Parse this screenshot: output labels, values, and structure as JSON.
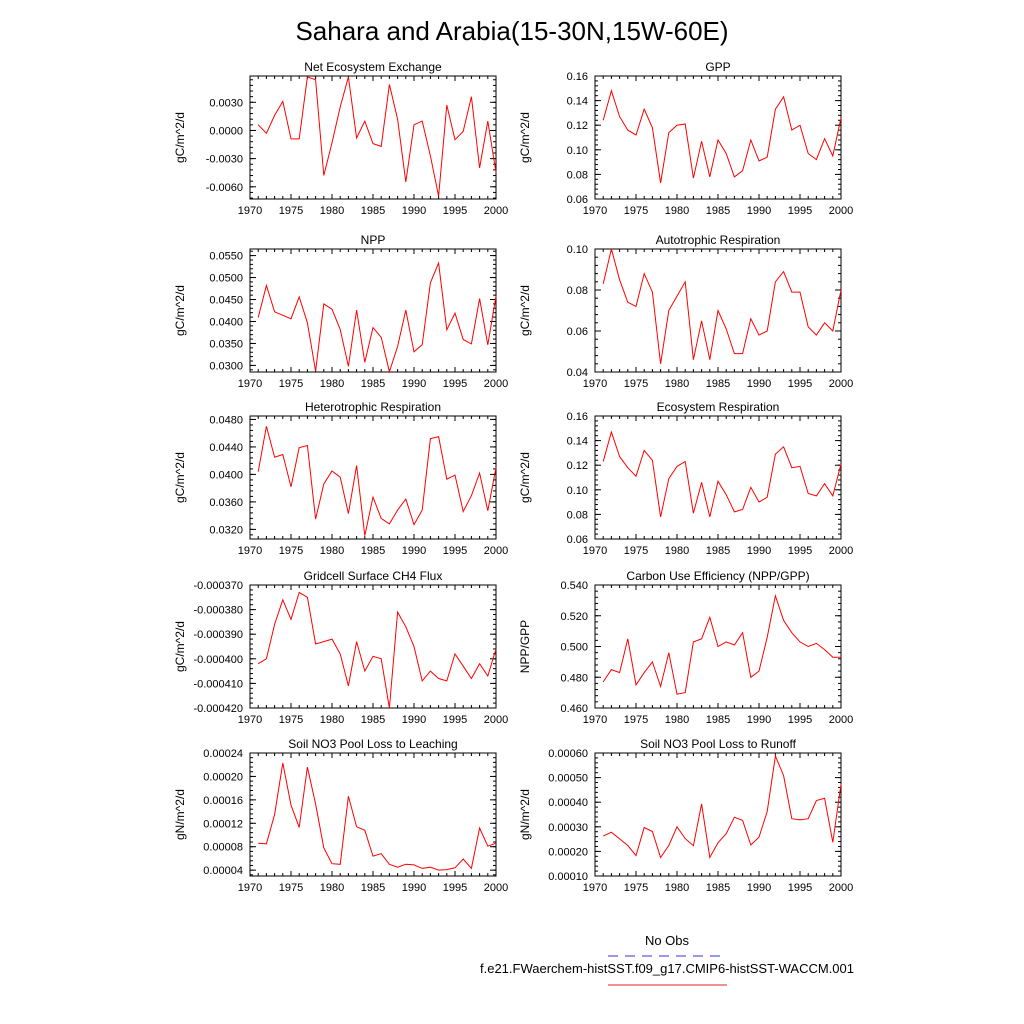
{
  "title": "Sahara and Arabia(15-30N,15W-60E)",
  "legend": {
    "entries": [
      {
        "label": "No Obs",
        "color": "#3333cc",
        "style": "dashed"
      },
      {
        "label": "f.e21.FWaerchem-histSST.f09_g17.CMIP6-histSST-WACCM.001",
        "color": "#e02020",
        "style": "solid"
      }
    ]
  },
  "colors": {
    "series": "#ff0000"
  },
  "chart_data": [
    {
      "type": "line",
      "title": "Net Ecosystem Exchange",
      "ylabel": "gC/m^2/d",
      "xlim": [
        1970,
        2000
      ],
      "ylim": [
        -0.0073,
        0.0058
      ],
      "xticks": [
        1970,
        1975,
        1980,
        1985,
        1990,
        1995,
        2000
      ],
      "xtick_labels": [
        "1970",
        "1975",
        "1980",
        "1985",
        "1990",
        "1995",
        "2000"
      ],
      "yticks": [
        -0.006,
        -0.003,
        0.0,
        0.003
      ],
      "ytick_labels": [
        "-0.0060",
        "-0.0030",
        "0.0000",
        "0.0030"
      ],
      "x": [
        1971,
        1972,
        1973,
        1974,
        1975,
        1976,
        1977,
        1978,
        1979,
        1980,
        1981,
        1982,
        1983,
        1984,
        1985,
        1986,
        1987,
        1988,
        1989,
        1990,
        1991,
        1992,
        1993,
        1994,
        1995,
        1996,
        1997,
        1998,
        1999,
        2000
      ],
      "values": [
        0.0006,
        -0.0003,
        0.0016,
        0.0031,
        -0.0009,
        -0.0009,
        0.0057,
        0.0054,
        -0.0048,
        -0.0013,
        0.0025,
        0.0057,
        -0.0008,
        0.001,
        -0.0014,
        -0.0017,
        0.0049,
        0.0012,
        -0.0055,
        0.0006,
        0.001,
        -0.0027,
        -0.007,
        0.0027,
        -0.001,
        -0.0001,
        0.0036,
        -0.004,
        0.001,
        -0.0045
      ]
    },
    {
      "type": "line",
      "title": "GPP",
      "ylabel": "gC/m^2/d",
      "xlim": [
        1970,
        2000
      ],
      "ylim": [
        0.06,
        0.16
      ],
      "xticks": [
        1970,
        1975,
        1980,
        1985,
        1990,
        1995,
        2000
      ],
      "xtick_labels": [
        "1970",
        "1975",
        "1980",
        "1985",
        "1990",
        "1995",
        "2000"
      ],
      "yticks": [
        0.06,
        0.08,
        0.1,
        0.12,
        0.14,
        0.16
      ],
      "ytick_labels": [
        "0.06",
        "0.08",
        "0.10",
        "0.12",
        "0.14",
        "0.16"
      ],
      "x": [
        1971,
        1972,
        1973,
        1974,
        1975,
        1976,
        1977,
        1978,
        1979,
        1980,
        1981,
        1982,
        1983,
        1984,
        1985,
        1986,
        1987,
        1988,
        1989,
        1990,
        1991,
        1992,
        1993,
        1994,
        1995,
        1996,
        1997,
        1998,
        1999,
        2000
      ],
      "values": [
        0.124,
        0.148,
        0.127,
        0.116,
        0.112,
        0.133,
        0.118,
        0.073,
        0.114,
        0.12,
        0.121,
        0.077,
        0.107,
        0.078,
        0.108,
        0.097,
        0.078,
        0.083,
        0.108,
        0.091,
        0.094,
        0.133,
        0.143,
        0.116,
        0.12,
        0.097,
        0.092,
        0.109,
        0.095,
        0.126
      ]
    },
    {
      "type": "line",
      "title": "NPP",
      "ylabel": "gC/m^2/d",
      "xlim": [
        1970,
        2000
      ],
      "ylim": [
        0.0285,
        0.0565
      ],
      "xticks": [
        1970,
        1975,
        1980,
        1985,
        1990,
        1995,
        2000
      ],
      "xtick_labels": [
        "1970",
        "1975",
        "1980",
        "1985",
        "1990",
        "1995",
        "2000"
      ],
      "yticks": [
        0.03,
        0.035,
        0.04,
        0.045,
        0.05,
        0.055
      ],
      "ytick_labels": [
        "0.0300",
        "0.0350",
        "0.0400",
        "0.0450",
        "0.0500",
        "0.0550"
      ],
      "x": [
        1971,
        1972,
        1973,
        1974,
        1975,
        1976,
        1977,
        1978,
        1979,
        1980,
        1981,
        1982,
        1983,
        1984,
        1985,
        1986,
        1987,
        1988,
        1989,
        1990,
        1991,
        1992,
        1993,
        1994,
        1995,
        1996,
        1997,
        1998,
        1999,
        2000
      ],
      "values": [
        0.0409,
        0.0482,
        0.0422,
        0.0414,
        0.0406,
        0.0456,
        0.0397,
        0.0287,
        0.044,
        0.0428,
        0.0382,
        0.0298,
        0.0426,
        0.0307,
        0.0386,
        0.0364,
        0.0286,
        0.0343,
        0.0426,
        0.0331,
        0.0347,
        0.0488,
        0.0533,
        0.0381,
        0.0419,
        0.0359,
        0.0349,
        0.0452,
        0.0347,
        0.0458
      ]
    },
    {
      "type": "line",
      "title": "Autotrophic Respiration",
      "ylabel": "gC/m^2/d",
      "xlim": [
        1970,
        2000
      ],
      "ylim": [
        0.04,
        0.1
      ],
      "xticks": [
        1970,
        1975,
        1980,
        1985,
        1990,
        1995,
        2000
      ],
      "xtick_labels": [
        "1970",
        "1975",
        "1980",
        "1985",
        "1990",
        "1995",
        "2000"
      ],
      "yticks": [
        0.04,
        0.06,
        0.08,
        0.1
      ],
      "ytick_labels": [
        "0.04",
        "0.06",
        "0.08",
        "0.10"
      ],
      "x": [
        1971,
        1972,
        1973,
        1974,
        1975,
        1976,
        1977,
        1978,
        1979,
        1980,
        1981,
        1982,
        1983,
        1984,
        1985,
        1986,
        1987,
        1988,
        1989,
        1990,
        1991,
        1992,
        1993,
        1994,
        1995,
        1996,
        1997,
        1998,
        1999,
        2000
      ],
      "values": [
        0.083,
        0.1,
        0.085,
        0.074,
        0.072,
        0.088,
        0.079,
        0.044,
        0.07,
        0.077,
        0.084,
        0.046,
        0.065,
        0.046,
        0.07,
        0.061,
        0.049,
        0.049,
        0.066,
        0.058,
        0.06,
        0.084,
        0.089,
        0.079,
        0.079,
        0.062,
        0.058,
        0.064,
        0.06,
        0.08
      ]
    },
    {
      "type": "line",
      "title": "Heterotrophic Respiration",
      "ylabel": "gC/m^2/d",
      "xlim": [
        1970,
        2000
      ],
      "ylim": [
        0.0306,
        0.0485
      ],
      "xticks": [
        1970,
        1975,
        1980,
        1985,
        1990,
        1995,
        2000
      ],
      "xtick_labels": [
        "1970",
        "1975",
        "1980",
        "1985",
        "1990",
        "1995",
        "2000"
      ],
      "yticks": [
        0.032,
        0.036,
        0.04,
        0.044,
        0.048
      ],
      "ytick_labels": [
        "0.0320",
        "0.0360",
        "0.0400",
        "0.0440",
        "0.0480"
      ],
      "x": [
        1971,
        1972,
        1973,
        1974,
        1975,
        1976,
        1977,
        1978,
        1979,
        1980,
        1981,
        1982,
        1983,
        1984,
        1985,
        1986,
        1987,
        1988,
        1989,
        1990,
        1991,
        1992,
        1993,
        1994,
        1995,
        1996,
        1997,
        1998,
        1999,
        2000
      ],
      "values": [
        0.0404,
        0.047,
        0.0425,
        0.0429,
        0.0382,
        0.0439,
        0.0442,
        0.0335,
        0.0386,
        0.0405,
        0.0396,
        0.0343,
        0.0413,
        0.0311,
        0.0367,
        0.0336,
        0.0328,
        0.0348,
        0.0364,
        0.0327,
        0.0348,
        0.0452,
        0.0455,
        0.0393,
        0.0399,
        0.0346,
        0.0369,
        0.0402,
        0.0347,
        0.041
      ]
    },
    {
      "type": "line",
      "title": "Ecosystem Respiration",
      "ylabel": "gC/m^2/d",
      "xlim": [
        1970,
        2000
      ],
      "ylim": [
        0.06,
        0.16
      ],
      "xticks": [
        1970,
        1975,
        1980,
        1985,
        1990,
        1995,
        2000
      ],
      "xtick_labels": [
        "1970",
        "1975",
        "1980",
        "1985",
        "1990",
        "1995",
        "2000"
      ],
      "yticks": [
        0.06,
        0.08,
        0.1,
        0.12,
        0.14,
        0.16
      ],
      "ytick_labels": [
        "0.06",
        "0.08",
        "0.10",
        "0.12",
        "0.14",
        "0.16"
      ],
      "x": [
        1971,
        1972,
        1973,
        1974,
        1975,
        1976,
        1977,
        1978,
        1979,
        1980,
        1981,
        1982,
        1983,
        1984,
        1985,
        1986,
        1987,
        1988,
        1989,
        1990,
        1991,
        1992,
        1993,
        1994,
        1995,
        1996,
        1997,
        1998,
        1999,
        2000
      ],
      "values": [
        0.123,
        0.147,
        0.127,
        0.118,
        0.111,
        0.132,
        0.124,
        0.078,
        0.109,
        0.119,
        0.123,
        0.081,
        0.106,
        0.078,
        0.107,
        0.096,
        0.082,
        0.084,
        0.102,
        0.09,
        0.094,
        0.129,
        0.135,
        0.118,
        0.119,
        0.097,
        0.095,
        0.105,
        0.095,
        0.121
      ]
    },
    {
      "type": "line",
      "title": "Gridcell Surface CH4 Flux",
      "ylabel": "gC/m^2/d",
      "xlim": [
        1970,
        2000
      ],
      "ylim": [
        -0.00042,
        -0.00037
      ],
      "xticks": [
        1970,
        1975,
        1980,
        1985,
        1990,
        1995,
        2000
      ],
      "xtick_labels": [
        "1970",
        "1975",
        "1980",
        "1985",
        "1990",
        "1995",
        "2000"
      ],
      "yticks": [
        -0.00042,
        -0.00041,
        -0.0004,
        -0.00039,
        -0.00038,
        -0.00037
      ],
      "ytick_labels": [
        "-0.000420",
        "-0.000410",
        "-0.000400",
        "-0.000390",
        "-0.000380",
        "-0.000370"
      ],
      "x": [
        1971,
        1972,
        1973,
        1974,
        1975,
        1976,
        1977,
        1978,
        1979,
        1980,
        1981,
        1982,
        1983,
        1984,
        1985,
        1986,
        1987,
        1988,
        1989,
        1990,
        1991,
        1992,
        1993,
        1994,
        1995,
        1996,
        1997,
        1998,
        1999,
        2000
      ],
      "values": [
        -0.000402,
        -0.0004,
        -0.000386,
        -0.000376,
        -0.000384,
        -0.000373,
        -0.000375,
        -0.000394,
        -0.000393,
        -0.000392,
        -0.000398,
        -0.000411,
        -0.000393,
        -0.000405,
        -0.000399,
        -0.0004,
        -0.00042,
        -0.000381,
        -0.000387,
        -0.000395,
        -0.000409,
        -0.000405,
        -0.000408,
        -0.000409,
        -0.000398,
        -0.000403,
        -0.000408,
        -0.000402,
        -0.000407,
        -0.000396
      ]
    },
    {
      "type": "line",
      "title": "Carbon Use Efficiency (NPP/GPP)",
      "ylabel": "NPP/GPP",
      "xlim": [
        1970,
        2000
      ],
      "ylim": [
        0.46,
        0.54
      ],
      "xticks": [
        1970,
        1975,
        1980,
        1985,
        1990,
        1995,
        2000
      ],
      "xtick_labels": [
        "1970",
        "1975",
        "1980",
        "1985",
        "1990",
        "1995",
        "2000"
      ],
      "yticks": [
        0.46,
        0.48,
        0.5,
        0.52,
        0.54
      ],
      "ytick_labels": [
        "0.460",
        "0.480",
        "0.500",
        "0.520",
        "0.540"
      ],
      "x": [
        1971,
        1972,
        1973,
        1974,
        1975,
        1976,
        1977,
        1978,
        1979,
        1980,
        1981,
        1982,
        1983,
        1984,
        1985,
        1986,
        1987,
        1988,
        1989,
        1990,
        1991,
        1992,
        1993,
        1994,
        1995,
        1996,
        1997,
        1998,
        1999,
        2000
      ],
      "values": [
        0.477,
        0.485,
        0.483,
        0.505,
        0.475,
        0.483,
        0.49,
        0.474,
        0.496,
        0.469,
        0.47,
        0.503,
        0.505,
        0.519,
        0.5,
        0.503,
        0.501,
        0.509,
        0.48,
        0.484,
        0.506,
        0.533,
        0.517,
        0.509,
        0.503,
        0.5,
        0.502,
        0.498,
        0.493,
        0.493
      ]
    },
    {
      "type": "line",
      "title": "Soil NO3 Pool Loss to Leaching",
      "ylabel": "gN/m^2/d",
      "xlim": [
        1970,
        2000
      ],
      "ylim": [
        3e-05,
        0.00024
      ],
      "xticks": [
        1970,
        1975,
        1980,
        1985,
        1990,
        1995,
        2000
      ],
      "xtick_labels": [
        "1970",
        "1975",
        "1980",
        "1985",
        "1990",
        "1995",
        "2000"
      ],
      "yticks": [
        4e-05,
        8e-05,
        0.00012,
        0.00016,
        0.0002,
        0.00024
      ],
      "ytick_labels": [
        "0.00004",
        "0.00008",
        "0.00012",
        "0.00016",
        "0.00020",
        "0.00024"
      ],
      "x": [
        1971,
        1972,
        1973,
        1974,
        1975,
        1976,
        1977,
        1978,
        1979,
        1980,
        1981,
        1982,
        1983,
        1984,
        1985,
        1986,
        1987,
        1988,
        1989,
        1990,
        1991,
        1992,
        1993,
        1994,
        1995,
        1996,
        1997,
        1998,
        1999,
        2000
      ],
      "values": [
        8.6e-05,
        8.5e-05,
        0.000135,
        0.000223,
        0.000151,
        0.000113,
        0.000216,
        0.000153,
        7.8e-05,
        5.1e-05,
        5e-05,
        0.000166,
        0.000114,
        0.000108,
        6.4e-05,
        6.8e-05,
        5e-05,
        4.5e-05,
        5e-05,
        4.9e-05,
        4.3e-05,
        4.5e-05,
        4e-05,
        4.1e-05,
        4.4e-05,
        5.9e-05,
        4.3e-05,
        0.000112,
        8.1e-05,
        8.6e-05
      ]
    },
    {
      "type": "line",
      "title": "Soil NO3 Pool Loss to Runoff",
      "ylabel": "gN/m^2/d",
      "xlim": [
        1970,
        2000
      ],
      "ylim": [
        0.0001,
        0.0006
      ],
      "xticks": [
        1970,
        1975,
        1980,
        1985,
        1990,
        1995,
        2000
      ],
      "xtick_labels": [
        "1970",
        "1975",
        "1980",
        "1985",
        "1990",
        "1995",
        "2000"
      ],
      "yticks": [
        0.0001,
        0.0002,
        0.0003,
        0.0004,
        0.0005,
        0.0006
      ],
      "ytick_labels": [
        "0.00010",
        "0.00020",
        "0.00030",
        "0.00040",
        "0.00050",
        "0.00060"
      ],
      "x": [
        1971,
        1972,
        1973,
        1974,
        1975,
        1976,
        1977,
        1978,
        1979,
        1980,
        1981,
        1982,
        1983,
        1984,
        1985,
        1986,
        1987,
        1988,
        1989,
        1990,
        1991,
        1992,
        1993,
        1994,
        1995,
        1996,
        1997,
        1998,
        1999,
        2000
      ],
      "values": [
        0.000262,
        0.000278,
        0.000251,
        0.000224,
        0.000183,
        0.000297,
        0.000281,
        0.000175,
        0.000224,
        0.0003,
        0.000252,
        0.000223,
        0.000393,
        0.000175,
        0.000235,
        0.000272,
        0.000339,
        0.000326,
        0.000226,
        0.000258,
        0.000362,
        0.000588,
        0.000508,
        0.000333,
        0.000328,
        0.000333,
        0.000407,
        0.000416,
        0.000237,
        0.000473
      ]
    }
  ]
}
